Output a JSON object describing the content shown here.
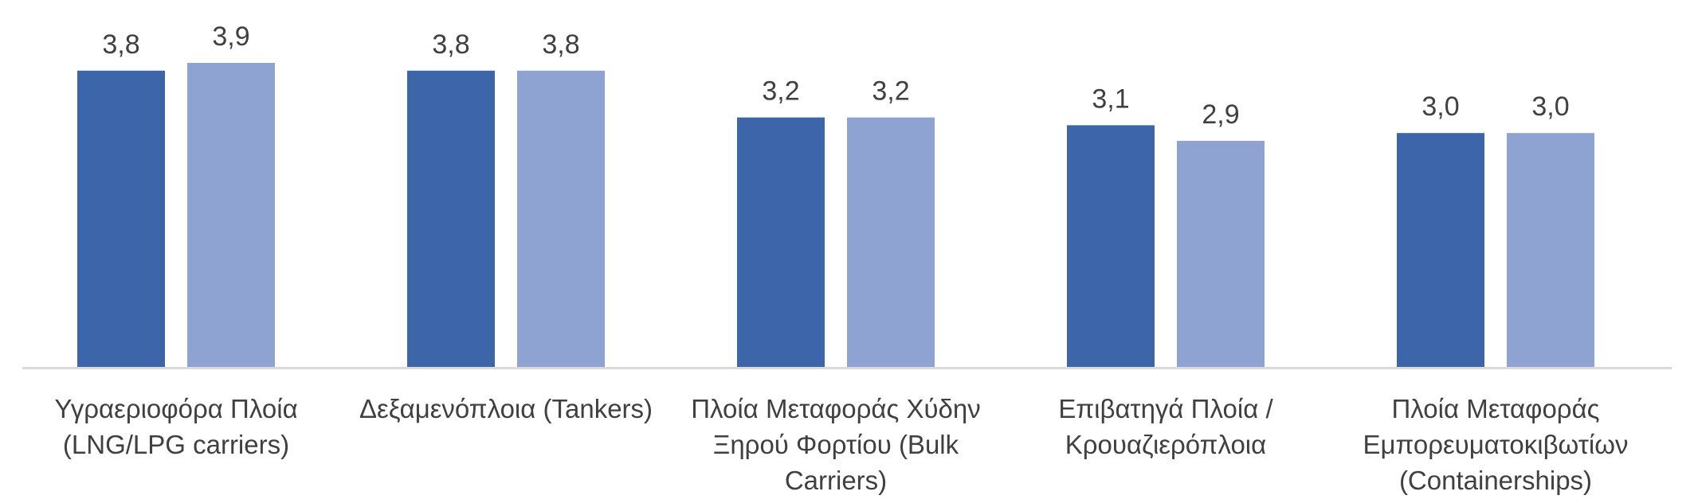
{
  "chart_data": {
    "type": "bar",
    "categories": [
      [
        "Υγραεριοφόρα Πλοία",
        "(LNG/LPG carriers)"
      ],
      [
        "Δεξαμενόπλοια (Tankers)"
      ],
      [
        "Πλοία Μεταφοράς Χύδην",
        "Ξηρού Φορτίου (Bulk",
        "Carriers)"
      ],
      [
        "Επιβατηγά Πλοία /",
        "Κρουαζιερόπλοια"
      ],
      [
        "Πλοία Μεταφοράς",
        "Εμπορευματοκιβωτίων",
        "(Containerships)"
      ]
    ],
    "series": [
      {
        "values": [
          3.8,
          3.8,
          3.2,
          3.1,
          3.0
        ],
        "labels": [
          "3,8",
          "3,8",
          "3,2",
          "3,1",
          "3,0"
        ],
        "color": "#3c65aa"
      },
      {
        "values": [
          3.9,
          3.8,
          3.2,
          2.9,
          3.0
        ],
        "labels": [
          "3,9",
          "3,8",
          "3,2",
          "2,9",
          "3,0"
        ],
        "color": "#8fa3d3"
      }
    ],
    "ylim": [
      0,
      3.9
    ],
    "grid": false,
    "legend": "none",
    "axis_color": "#d9d9d9"
  }
}
